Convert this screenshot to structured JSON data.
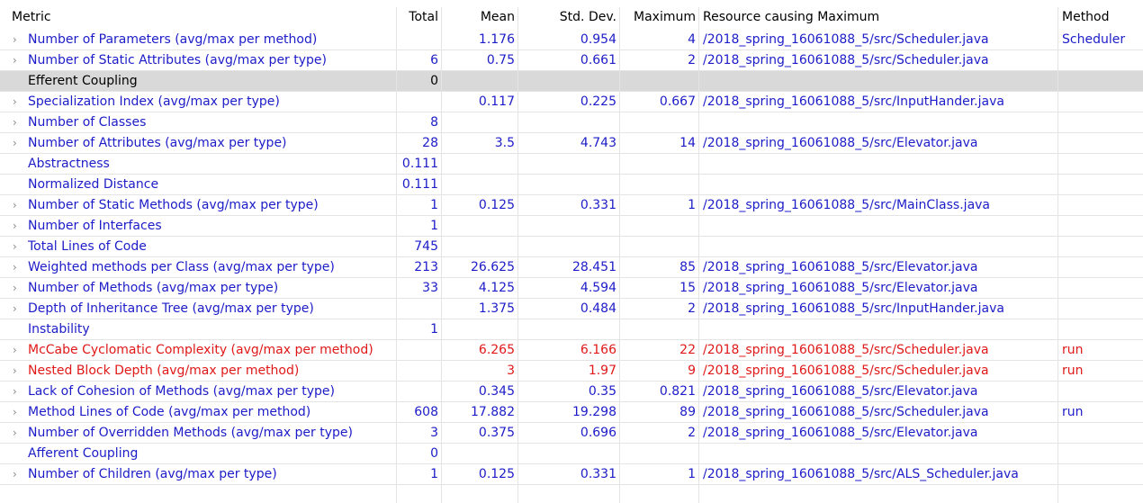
{
  "columns": {
    "metric": "Metric",
    "total": "Total",
    "mean": "Mean",
    "std_dev": "Std. Dev.",
    "maximum": "Maximum",
    "resource": "Resource causing Maximum",
    "method": "Method"
  },
  "chevron_glyph": "›",
  "colors": {
    "metric_text": "#1c1cc8",
    "warning_text": "#e01818",
    "selected_row_bg": "#d9d9d9"
  },
  "rows": [
    {
      "metric": "Number of Parameters (avg/max per method)",
      "expandable": true,
      "total": "",
      "mean": "1.176",
      "std": "0.954",
      "max": "4",
      "resource": "/2018_spring_16061088_5/src/Scheduler.java",
      "method": "Scheduler"
    },
    {
      "metric": "Number of Static Attributes (avg/max per type)",
      "expandable": true,
      "total": "6",
      "mean": "0.75",
      "std": "0.661",
      "max": "2",
      "resource": "/2018_spring_16061088_5/src/Scheduler.java",
      "method": ""
    },
    {
      "metric": "Efferent Coupling",
      "expandable": false,
      "selected": true,
      "total": "0",
      "mean": "",
      "std": "",
      "max": "",
      "resource": "",
      "method": ""
    },
    {
      "metric": "Specialization Index (avg/max per type)",
      "expandable": true,
      "total": "",
      "mean": "0.117",
      "std": "0.225",
      "max": "0.667",
      "resource": "/2018_spring_16061088_5/src/InputHander.java",
      "method": ""
    },
    {
      "metric": "Number of Classes",
      "expandable": true,
      "total": "8",
      "mean": "",
      "std": "",
      "max": "",
      "resource": "",
      "method": ""
    },
    {
      "metric": "Number of Attributes (avg/max per type)",
      "expandable": true,
      "total": "28",
      "mean": "3.5",
      "std": "4.743",
      "max": "14",
      "resource": "/2018_spring_16061088_5/src/Elevator.java",
      "method": ""
    },
    {
      "metric": "Abstractness",
      "expandable": false,
      "total": "0.111",
      "mean": "",
      "std": "",
      "max": "",
      "resource": "",
      "method": ""
    },
    {
      "metric": "Normalized Distance",
      "expandable": false,
      "total": "0.111",
      "mean": "",
      "std": "",
      "max": "",
      "resource": "",
      "method": ""
    },
    {
      "metric": "Number of Static Methods (avg/max per type)",
      "expandable": true,
      "total": "1",
      "mean": "0.125",
      "std": "0.331",
      "max": "1",
      "resource": "/2018_spring_16061088_5/src/MainClass.java",
      "method": ""
    },
    {
      "metric": "Number of Interfaces",
      "expandable": true,
      "total": "1",
      "mean": "",
      "std": "",
      "max": "",
      "resource": "",
      "method": ""
    },
    {
      "metric": "Total Lines of Code",
      "expandable": true,
      "total": "745",
      "mean": "",
      "std": "",
      "max": "",
      "resource": "",
      "method": ""
    },
    {
      "metric": "Weighted methods per Class (avg/max per type)",
      "expandable": true,
      "total": "213",
      "mean": "26.625",
      "std": "28.451",
      "max": "85",
      "resource": "/2018_spring_16061088_5/src/Elevator.java",
      "method": ""
    },
    {
      "metric": "Number of Methods (avg/max per type)",
      "expandable": true,
      "total": "33",
      "mean": "4.125",
      "std": "4.594",
      "max": "15",
      "resource": "/2018_spring_16061088_5/src/Elevator.java",
      "method": ""
    },
    {
      "metric": "Depth of Inheritance Tree (avg/max per type)",
      "expandable": true,
      "total": "",
      "mean": "1.375",
      "std": "0.484",
      "max": "2",
      "resource": "/2018_spring_16061088_5/src/InputHander.java",
      "method": ""
    },
    {
      "metric": "Instability",
      "expandable": false,
      "total": "1",
      "mean": "",
      "std": "",
      "max": "",
      "resource": "",
      "method": ""
    },
    {
      "metric": "McCabe Cyclomatic Complexity (avg/max per method)",
      "expandable": true,
      "warning": true,
      "total": "",
      "mean": "6.265",
      "std": "6.166",
      "max": "22",
      "resource": "/2018_spring_16061088_5/src/Scheduler.java",
      "method": "run"
    },
    {
      "metric": "Nested Block Depth (avg/max per method)",
      "expandable": true,
      "warning": true,
      "total": "",
      "mean": "3",
      "std": "1.97",
      "max": "9",
      "resource": "/2018_spring_16061088_5/src/Scheduler.java",
      "method": "run"
    },
    {
      "metric": "Lack of Cohesion of Methods (avg/max per type)",
      "expandable": true,
      "total": "",
      "mean": "0.345",
      "std": "0.35",
      "max": "0.821",
      "resource": "/2018_spring_16061088_5/src/Elevator.java",
      "method": ""
    },
    {
      "metric": "Method Lines of Code (avg/max per method)",
      "expandable": true,
      "total": "608",
      "mean": "17.882",
      "std": "19.298",
      "max": "89",
      "resource": "/2018_spring_16061088_5/src/Scheduler.java",
      "method": "run"
    },
    {
      "metric": "Number of Overridden Methods (avg/max per type)",
      "expandable": true,
      "total": "3",
      "mean": "0.375",
      "std": "0.696",
      "max": "2",
      "resource": "/2018_spring_16061088_5/src/Elevator.java",
      "method": ""
    },
    {
      "metric": "Afferent Coupling",
      "expandable": false,
      "total": "0",
      "mean": "",
      "std": "",
      "max": "",
      "resource": "",
      "method": ""
    },
    {
      "metric": "Number of Children (avg/max per type)",
      "expandable": true,
      "total": "1",
      "mean": "0.125",
      "std": "0.331",
      "max": "1",
      "resource": "/2018_spring_16061088_5/src/ALS_Scheduler.java",
      "method": ""
    }
  ]
}
